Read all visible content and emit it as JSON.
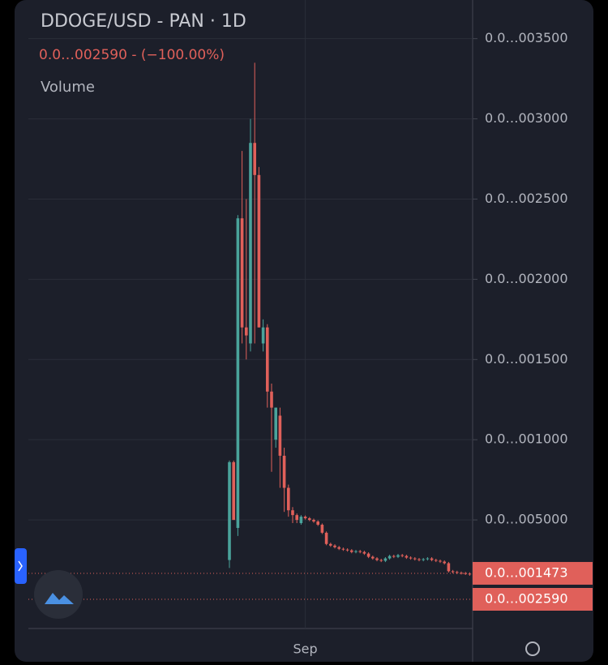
{
  "chart_data": {
    "type": "candlestick",
    "title": "DDOGE/USD - PAN · 1D",
    "subtitle": "0.0…002590 - (−100.00%)",
    "volume_label": "Volume",
    "up_color": "#4aa39b",
    "down_color": "#e0605a",
    "categories": [
      null,
      null,
      null,
      null,
      null,
      null,
      null,
      null,
      null,
      null,
      null,
      null,
      null,
      null,
      null,
      null,
      null,
      null,
      "Sep",
      null,
      null,
      null,
      null,
      null,
      null,
      null,
      null,
      null,
      null,
      null,
      null,
      null,
      null,
      null,
      null,
      null,
      null,
      null,
      null,
      null,
      null,
      null,
      null,
      null,
      null,
      null,
      null,
      null,
      null,
      null,
      null,
      null,
      null,
      null,
      null,
      null,
      null,
      null
    ],
    "open": [
      250,
      860,
      450,
      2380,
      1700,
      1600,
      2850,
      2650,
      1600,
      1700,
      1300,
      1000,
      1150,
      900,
      700,
      560,
      530,
      480,
      520,
      510,
      500,
      490,
      470,
      420,
      350,
      340,
      330,
      320,
      315,
      310,
      300,
      305,
      300,
      290,
      270,
      260,
      250,
      245,
      260,
      275,
      270,
      280,
      275,
      265,
      260,
      255,
      250,
      255,
      260,
      250,
      245,
      240,
      230,
      180,
      175,
      170,
      168,
      165
    ],
    "high": [
      870,
      870,
      2400,
      2800,
      2500,
      3000,
      3350,
      2700,
      1750,
      1720,
      1350,
      1200,
      1200,
      950,
      720,
      580,
      540,
      530,
      528,
      518,
      508,
      498,
      478,
      428,
      358,
      348,
      338,
      328,
      323,
      318,
      313,
      313,
      308,
      298,
      278,
      268,
      258,
      268,
      283,
      283,
      288,
      288,
      283,
      273,
      268,
      263,
      263,
      268,
      268,
      258,
      253,
      248,
      238,
      188,
      183,
      178,
      176,
      173
    ],
    "low": [
      200,
      500,
      400,
      1600,
      1500,
      1550,
      1600,
      1700,
      1550,
      1200,
      800,
      950,
      700,
      550,
      520,
      480,
      480,
      470,
      502,
      492,
      482,
      462,
      412,
      342,
      332,
      322,
      312,
      307,
      302,
      292,
      292,
      292,
      282,
      262,
      252,
      242,
      237,
      237,
      252,
      262,
      262,
      267,
      257,
      252,
      247,
      242,
      242,
      247,
      242,
      237,
      232,
      222,
      172,
      167,
      162,
      160,
      157,
      152
    ],
    "close": [
      860,
      500,
      2380,
      1700,
      1650,
      2850,
      2650,
      1700,
      1700,
      1300,
      1200,
      1200,
      900,
      700,
      560,
      530,
      500,
      520,
      510,
      500,
      490,
      470,
      420,
      350,
      340,
      330,
      320,
      315,
      310,
      300,
      305,
      300,
      290,
      270,
      260,
      250,
      245,
      260,
      275,
      270,
      280,
      275,
      265,
      260,
      255,
      250,
      255,
      260,
      250,
      245,
      240,
      230,
      180,
      175,
      170,
      168,
      165,
      160
    ],
    "ylim": [
      -177,
      3741
    ],
    "yticks": [
      {
        "value": 500,
        "label": "0.0…005000"
      },
      {
        "value": 1000,
        "label": "0.0…001000"
      },
      {
        "value": 1500,
        "label": "0.0…001500"
      },
      {
        "value": 2000,
        "label": "0.0…002000"
      },
      {
        "value": 2500,
        "label": "0.0…002500"
      },
      {
        "value": 3000,
        "label": "0.0…003000"
      },
      {
        "value": 3500,
        "label": "0.0…003500"
      }
    ],
    "price_labels": [
      {
        "value": 167,
        "label": "0.0…001473"
      },
      {
        "value": 5,
        "label": "0.0…002590"
      }
    ],
    "grid": true
  }
}
